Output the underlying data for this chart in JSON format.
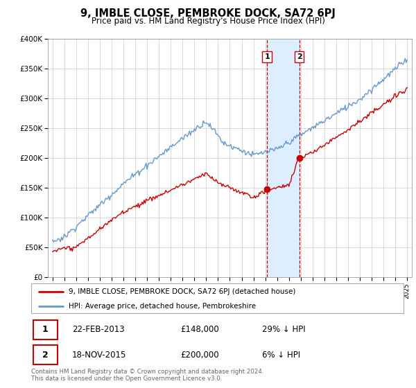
{
  "title": "9, IMBLE CLOSE, PEMBROKE DOCK, SA72 6PJ",
  "subtitle": "Price paid vs. HM Land Registry's House Price Index (HPI)",
  "footer": "Contains HM Land Registry data © Crown copyright and database right 2024.\nThis data is licensed under the Open Government Licence v3.0.",
  "legend_line1": "9, IMBLE CLOSE, PEMBROKE DOCK, SA72 6PJ (detached house)",
  "legend_line2": "HPI: Average price, detached house, Pembrokeshire",
  "transaction1_label": "1",
  "transaction1_date": "22-FEB-2013",
  "transaction1_price": "£148,000",
  "transaction1_hpi": "29% ↓ HPI",
  "transaction2_label": "2",
  "transaction2_date": "18-NOV-2015",
  "transaction2_price": "£200,000",
  "transaction2_hpi": "6% ↓ HPI",
  "red_color": "#cc0000",
  "blue_color": "#6699cc",
  "highlight_color": "#ddeeff",
  "highlight_border": "#cc0000",
  "ylim": [
    0,
    400000
  ],
  "yticks": [
    0,
    50000,
    100000,
    150000,
    200000,
    250000,
    300000,
    350000,
    400000
  ],
  "ytick_labels": [
    "£0",
    "£50K",
    "£100K",
    "£150K",
    "£200K",
    "£250K",
    "£300K",
    "£350K",
    "£400K"
  ]
}
